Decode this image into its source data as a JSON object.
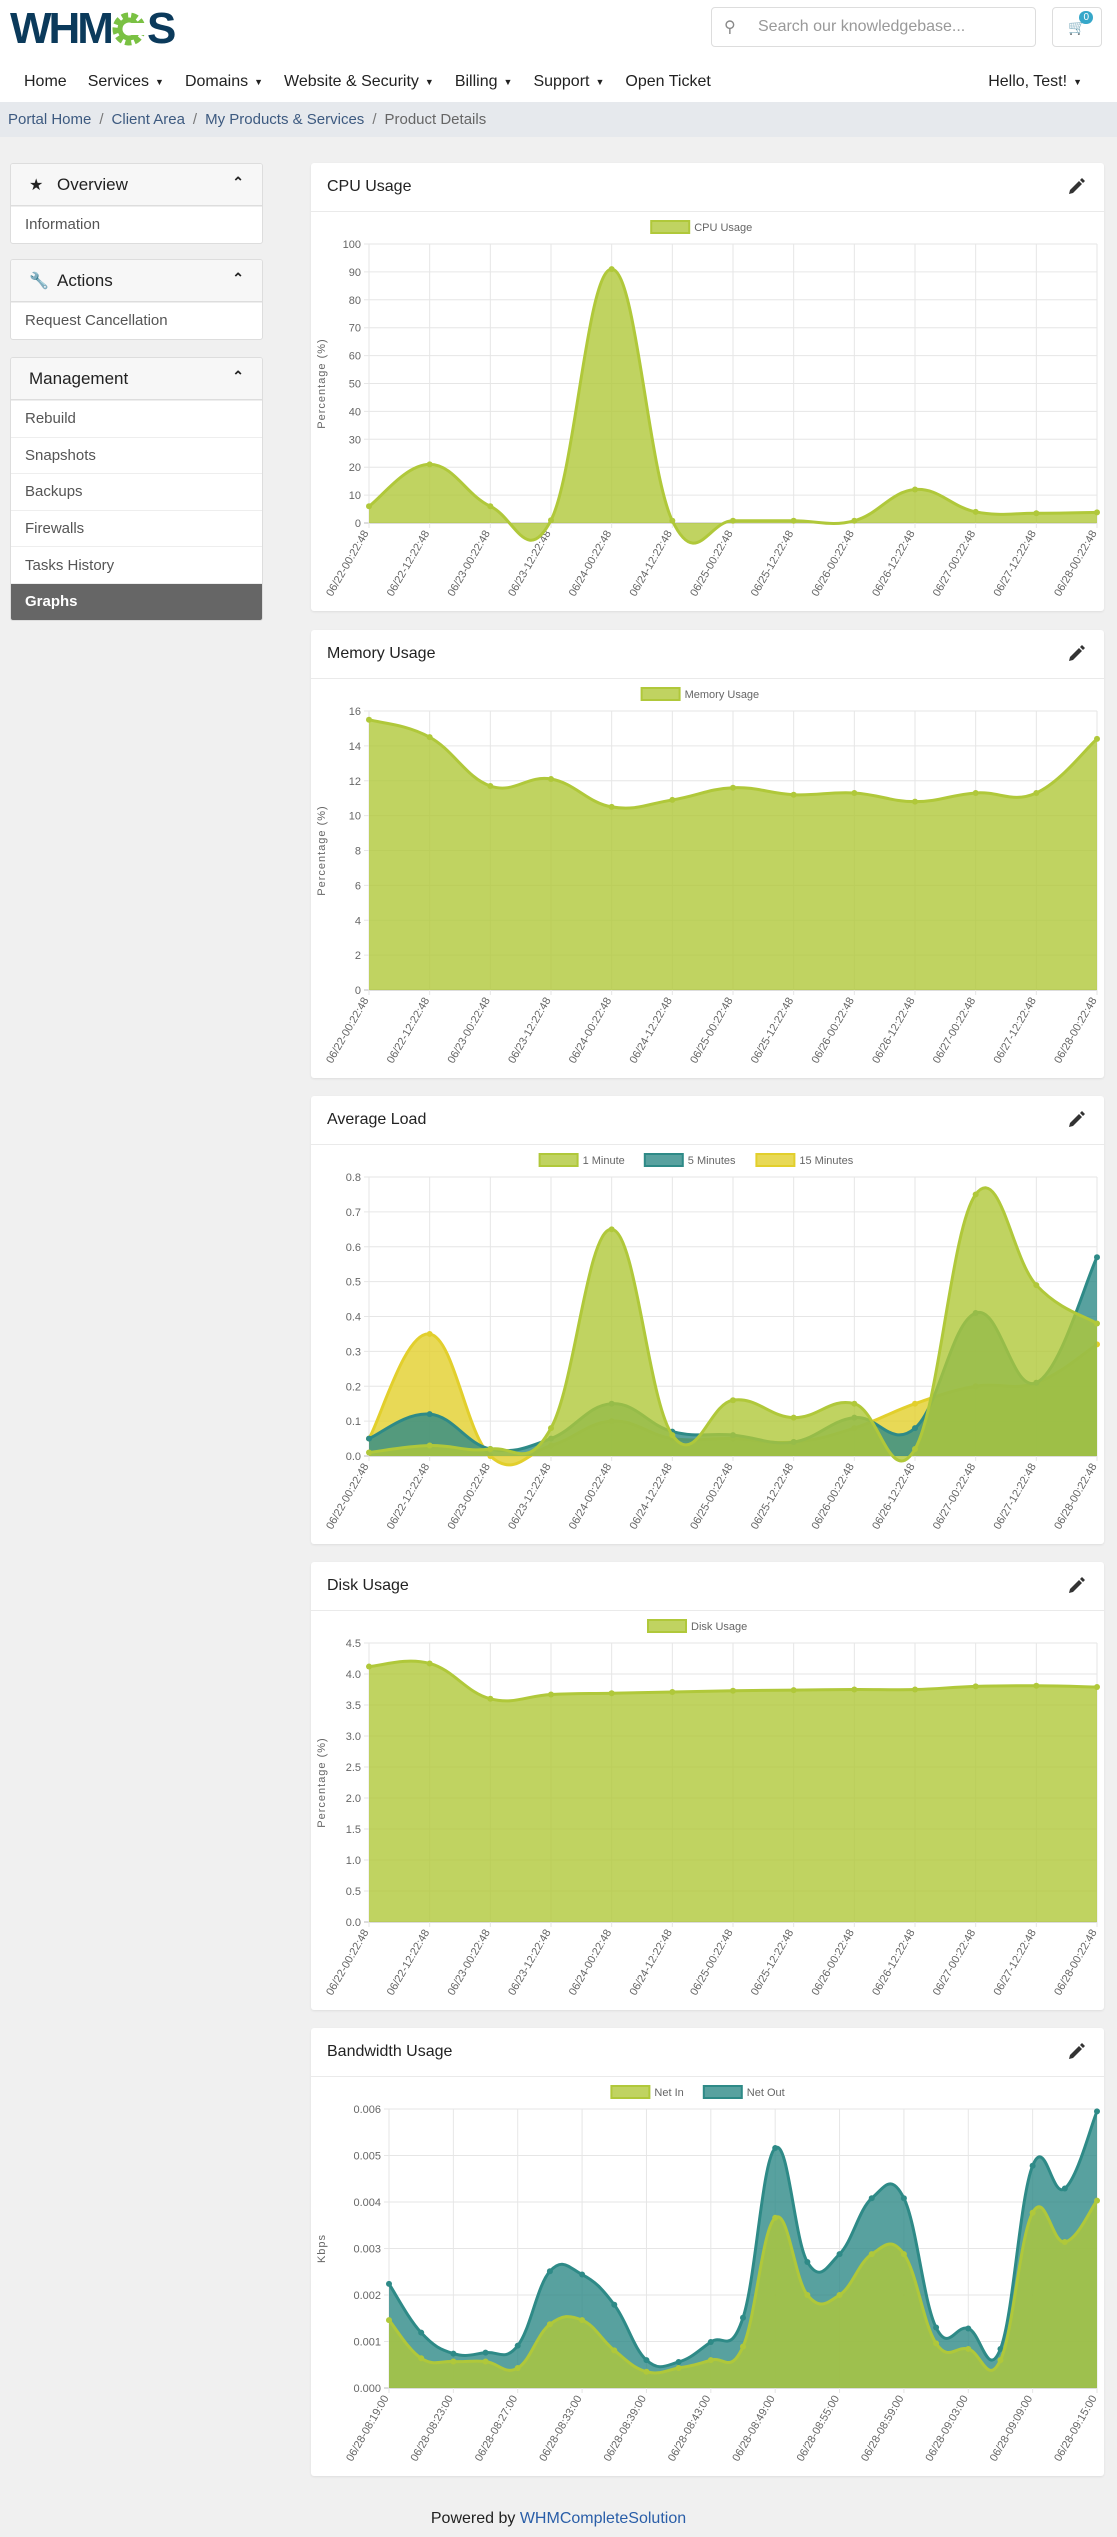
{
  "header": {
    "logo_text": "WHMCS",
    "search_placeholder": "Search our knowledgebase...",
    "cart_count": "0"
  },
  "nav": {
    "items": [
      {
        "label": "Home",
        "dropdown": false
      },
      {
        "label": "Services",
        "dropdown": true
      },
      {
        "label": "Domains",
        "dropdown": true
      },
      {
        "label": "Website & Security",
        "dropdown": true
      },
      {
        "label": "Billing",
        "dropdown": true
      },
      {
        "label": "Support",
        "dropdown": true
      },
      {
        "label": "Open Ticket",
        "dropdown": false
      }
    ],
    "user": "Hello, Test!"
  },
  "breadcrumb": [
    "Portal Home",
    "Client Area",
    "My Products & Services",
    "Product Details"
  ],
  "sidebar": {
    "overview": {
      "title": "Overview",
      "icon": "star-icon",
      "items": [
        "Information"
      ]
    },
    "actions": {
      "title": "Actions",
      "icon": "wrench-icon",
      "items": [
        "Request Cancellation"
      ]
    },
    "management": {
      "title": "Management",
      "items": [
        "Rebuild",
        "Snapshots",
        "Backups",
        "Firewalls",
        "Tasks History",
        "Graphs"
      ],
      "active": "Graphs"
    }
  },
  "colors": {
    "green": "#b0c83a",
    "teal": "#2e8a87",
    "yellow": "#e2cf2c",
    "active_item": "#666666"
  },
  "chart_data": [
    {
      "title": "CPU Usage",
      "type": "area",
      "x": [
        "06/22-00:22:48",
        "06/22-12:22:48",
        "06/23-00:22:48",
        "06/23-12:22:48",
        "06/24-00:22:48",
        "06/24-12:22:48",
        "06/25-00:22:48",
        "06/25-12:22:48",
        "06/26-00:22:48",
        "06/26-12:22:48",
        "06/27-00:22:48",
        "06/27-12:22:48",
        "06/28-00:22:48"
      ],
      "ylabel": "Percentage (%)",
      "ylim": [
        0,
        100
      ],
      "ystep": 10,
      "grid": true,
      "legend": "top",
      "series": [
        {
          "name": "CPU Usage",
          "color": "#b0c83a",
          "values": [
            6,
            21,
            6,
            1,
            91,
            0.8,
            0.8,
            0.8,
            0.8,
            12,
            4,
            3.5,
            3.8
          ]
        }
      ]
    },
    {
      "title": "Memory Usage",
      "type": "area",
      "x": [
        "06/22-00:22:48",
        "06/22-12:22:48",
        "06/23-00:22:48",
        "06/23-12:22:48",
        "06/24-00:22:48",
        "06/24-12:22:48",
        "06/25-00:22:48",
        "06/25-12:22:48",
        "06/26-00:22:48",
        "06/26-12:22:48",
        "06/27-00:22:48",
        "06/27-12:22:48",
        "06/28-00:22:48"
      ],
      "ylabel": "Percentage (%)",
      "ylim": [
        0,
        16
      ],
      "ystep": 2,
      "grid": true,
      "legend": "top",
      "series": [
        {
          "name": "Memory Usage",
          "color": "#b0c83a",
          "values": [
            15.5,
            14.5,
            11.7,
            12.1,
            10.5,
            10.9,
            11.6,
            11.2,
            11.3,
            10.8,
            11.3,
            11.3,
            14.4
          ]
        }
      ]
    },
    {
      "title": "Average Load",
      "type": "area",
      "x": [
        "06/22-00:22:48",
        "06/22-12:22:48",
        "06/23-00:22:48",
        "06/23-12:22:48",
        "06/24-00:22:48",
        "06/24-12:22:48",
        "06/25-00:22:48",
        "06/25-12:22:48",
        "06/26-00:22:48",
        "06/26-12:22:48",
        "06/27-00:22:48",
        "06/27-12:22:48",
        "06/28-00:22:48"
      ],
      "ylabel": "",
      "ylim": [
        0,
        0.8
      ],
      "ystep": 0.1,
      "grid": true,
      "legend": "top",
      "series": [
        {
          "name": "1 Minute",
          "color": "#b0c83a",
          "values": [
            0.01,
            0.03,
            0.02,
            0.08,
            0.65,
            0.06,
            0.16,
            0.11,
            0.15,
            0.02,
            0.75,
            0.49,
            0.38
          ]
        },
        {
          "name": "5 Minutes",
          "color": "#2e8a87",
          "values": [
            0.05,
            0.12,
            0.02,
            0.05,
            0.15,
            0.07,
            0.06,
            0.04,
            0.11,
            0.08,
            0.41,
            0.21,
            0.57
          ]
        },
        {
          "name": "15 Minutes",
          "color": "#e2cf2c",
          "values": [
            0.05,
            0.35,
            0.0,
            0.03,
            0.1,
            0.05,
            0.05,
            0.04,
            0.08,
            0.15,
            0.2,
            0.21,
            0.32
          ]
        }
      ]
    },
    {
      "title": "Disk Usage",
      "type": "area",
      "x": [
        "06/22-00:22:48",
        "06/22-12:22:48",
        "06/23-00:22:48",
        "06/23-12:22:48",
        "06/24-00:22:48",
        "06/24-12:22:48",
        "06/25-00:22:48",
        "06/25-12:22:48",
        "06/26-00:22:48",
        "06/26-12:22:48",
        "06/27-00:22:48",
        "06/27-12:22:48",
        "06/28-00:22:48"
      ],
      "ylabel": "Percentage (%)",
      "ylim": [
        0,
        4.5
      ],
      "ystep": 0.5,
      "grid": true,
      "legend": "top",
      "series": [
        {
          "name": "Disk Usage",
          "color": "#b0c83a",
          "values": [
            4.12,
            4.17,
            3.6,
            3.67,
            3.69,
            3.71,
            3.73,
            3.74,
            3.75,
            3.75,
            3.8,
            3.81,
            3.79
          ]
        }
      ]
    },
    {
      "title": "Bandwidth Usage",
      "type": "area",
      "x_tick_labels": [
        "06/28-08:19:00",
        "06/28-08:23:00",
        "06/28-08:27:00",
        "06/28-08:33:00",
        "06/28-08:39:00",
        "06/28-08:43:00",
        "06/28-08:49:00",
        "06/28-08:55:00",
        "06/28-08:59:00",
        "06/28-09:03:00",
        "06/28-09:09:00",
        "06/28-09:15:00"
      ],
      "ylabel": "Kbps",
      "ylim": [
        0,
        0.006
      ],
      "ystep": 0.001,
      "grid": true,
      "legend": "top",
      "series": [
        {
          "name": "Net In",
          "color": "#b0c83a",
          "values": [
            0.00146,
            0.00064,
            0.00057,
            0.00057,
            0.00043,
            0.00137,
            0.00146,
            0.00081,
            0.00035,
            0.00043,
            0.0006,
            0.00089,
            0.00366,
            0.002,
            0.002,
            0.00288,
            0.00288,
            0.00096,
            0.00084,
            0.0006,
            0.00377,
            0.00314,
            0.00403
          ]
        },
        {
          "name": "Net Out",
          "color": "#2e8a87",
          "values": [
            0.00224,
            0.00119,
            0.00074,
            0.00076,
            0.00091,
            0.00251,
            0.00244,
            0.00179,
            0.0006,
            0.00056,
            0.00099,
            0.00151,
            0.00516,
            0.00271,
            0.00288,
            0.00408,
            0.00408,
            0.0013,
            0.00128,
            0.00084,
            0.00478,
            0.00429,
            0.00595
          ]
        }
      ]
    }
  ],
  "footer": {
    "prefix": "Powered by",
    "link": "WHMCompleteSolution"
  }
}
